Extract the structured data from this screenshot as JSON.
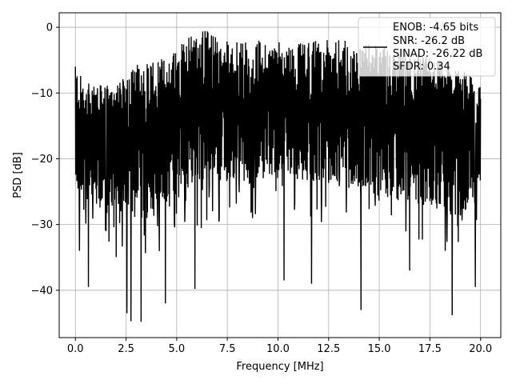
{
  "chart_data": {
    "type": "line",
    "title": "",
    "xlabel": "Frequency [MHz]",
    "ylabel": "PSD [dB]",
    "xlim": [
      -0.8,
      21.0
    ],
    "ylim": [
      -47.2,
      2.2
    ],
    "xticks": [
      0.0,
      2.5,
      5.0,
      7.5,
      10.0,
      12.5,
      15.0,
      17.5,
      20.0
    ],
    "xtick_labels": [
      "0.0",
      "2.5",
      "5.0",
      "7.5",
      "10.0",
      "12.5",
      "15.0",
      "17.5",
      "20.0"
    ],
    "yticks": [
      0,
      -10,
      -20,
      -30,
      -40
    ],
    "ytick_labels": [
      "0",
      "−10",
      "−20",
      "−30",
      "−40"
    ],
    "grid": true,
    "legend_position": "upper right",
    "legend_lines": [
      "ENOB: -4.65 bits",
      "SNR: -26.2 dB",
      "SINAD: -26.22 dB",
      "SFDR: 0.34"
    ],
    "series": [
      {
        "color": "#000000",
        "x_start": 0.0,
        "x_end": 20.0,
        "start_value": -6.0,
        "upper_envelope": [
          [
            0.0,
            -6.0
          ],
          [
            0.5,
            -8.5
          ],
          [
            2.0,
            -9.0
          ],
          [
            3.2,
            -5.0
          ],
          [
            4.5,
            -4.5
          ],
          [
            5.5,
            -1.0
          ],
          [
            6.3,
            0.0
          ],
          [
            7.5,
            -2.0
          ],
          [
            9.0,
            -2.0
          ],
          [
            11.0,
            -2.5
          ],
          [
            12.5,
            -1.5
          ],
          [
            14.0,
            -2.5
          ],
          [
            16.0,
            -3.0
          ],
          [
            18.0,
            -5.0
          ],
          [
            20.0,
            -8.0
          ]
        ],
        "lower_envelope": [
          [
            0.0,
            -25.0
          ],
          [
            1.0,
            -28.0
          ],
          [
            3.0,
            -30.0
          ],
          [
            5.0,
            -27.0
          ],
          [
            7.0,
            -24.0
          ],
          [
            10.0,
            -23.0
          ],
          [
            13.0,
            -24.0
          ],
          [
            15.0,
            -26.0
          ],
          [
            17.0,
            -27.0
          ],
          [
            19.0,
            -29.0
          ],
          [
            20.0,
            -25.0
          ]
        ],
        "deep_minima": [
          [
            0.2,
            -34.0
          ],
          [
            0.65,
            -39.5
          ],
          [
            2.55,
            -43.5
          ],
          [
            2.75,
            -44.7
          ],
          [
            3.25,
            -44.8
          ],
          [
            4.45,
            -42.0
          ],
          [
            5.9,
            -39.8
          ],
          [
            10.3,
            -38.5
          ],
          [
            11.65,
            -39.0
          ],
          [
            14.1,
            -43.0
          ],
          [
            16.5,
            -37.0
          ],
          [
            18.6,
            -43.8
          ],
          [
            19.75,
            -39.5
          ]
        ]
      }
    ]
  }
}
